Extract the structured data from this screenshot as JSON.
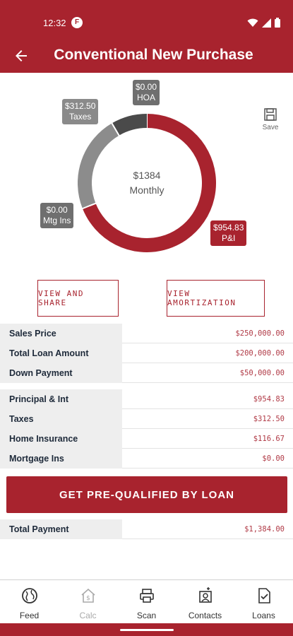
{
  "status": {
    "time": "12:32",
    "carrier_icon": "F"
  },
  "header": {
    "title": "Conventional New Purchase",
    "back_icon": "arrow-left-icon"
  },
  "chart": {
    "center_amount": "$1384",
    "center_label": "Monthly",
    "labels": {
      "taxes": {
        "amount": "$312.50",
        "name": "Taxes"
      },
      "hoa": {
        "amount": "$0.00",
        "name": "HOA"
      },
      "mtg_ins": {
        "amount": "$0.00",
        "name": "Mtg Ins"
      },
      "pi": {
        "amount": "$954.83",
        "name": "P&I"
      }
    },
    "save_label": "Save",
    "colors": {
      "pi": "#a8232e",
      "taxes": "#8c8c8c",
      "insurance": "#4a4a4a"
    }
  },
  "chart_data": {
    "type": "pie",
    "categories": [
      "P&I",
      "Taxes",
      "Home Insurance",
      "HOA",
      "Mtg Ins"
    ],
    "values": [
      954.83,
      312.5,
      116.67,
      0.0,
      0.0
    ]
  },
  "actions": {
    "view_share": "VIEW AND SHARE",
    "view_amortization": "VIEW AMORTIZATION"
  },
  "loan_table": [
    {
      "label": "Sales Price",
      "value": "$250,000.00"
    },
    {
      "label": "Total Loan Amount",
      "value": "$200,000.00"
    },
    {
      "label": "Down Payment",
      "value": "$50,000.00"
    }
  ],
  "payment_table": [
    {
      "label": "Principal & Int",
      "value": "$954.83"
    },
    {
      "label": "Taxes",
      "value": "$312.50"
    },
    {
      "label": "Home Insurance",
      "value": "$116.67"
    },
    {
      "label": "Mortgage Ins",
      "value": "$0.00"
    }
  ],
  "cta": "GET PRE-QUALIFIED BY LOAN",
  "total": {
    "label": "Total Payment",
    "value": "$1,384.00"
  },
  "nav": [
    {
      "label": "Feed",
      "icon": "globe-icon"
    },
    {
      "label": "Calc",
      "icon": "home-dollar-icon"
    },
    {
      "label": "Scan",
      "icon": "printer-icon"
    },
    {
      "label": "Contacts",
      "icon": "contacts-icon"
    },
    {
      "label": "Loans",
      "icon": "document-check-icon"
    }
  ]
}
